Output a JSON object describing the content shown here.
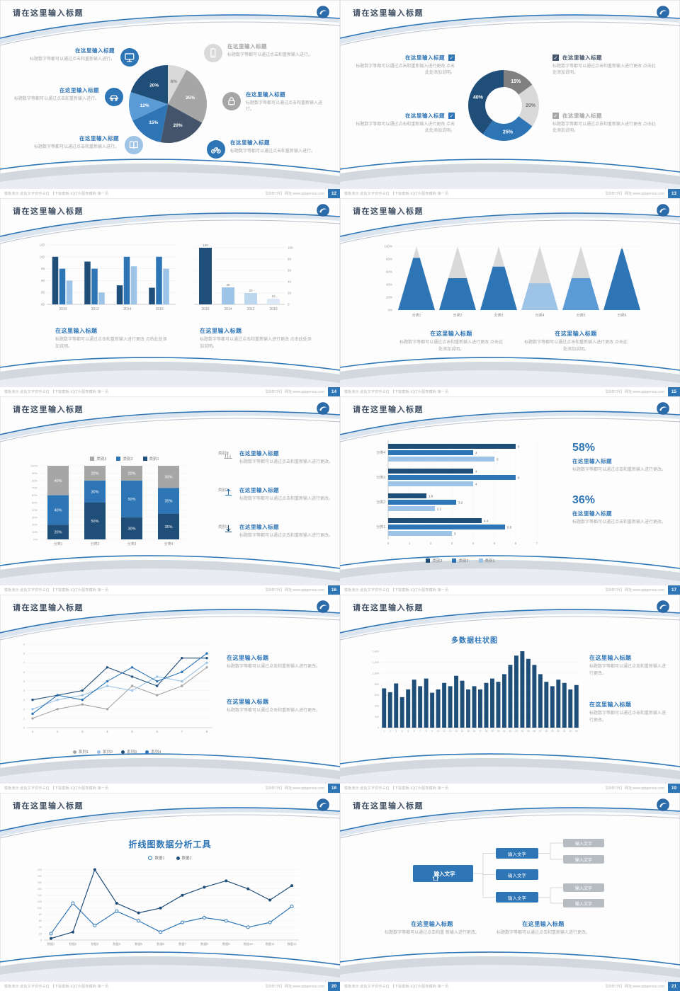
{
  "meta": {
    "slide_title": "请在这里输入标题",
    "footer_left": "模板演示:此处文字仅作占位 【下载模板·幻灯片图表模板·第一页",
    "footer_right": "【09年7月】 网址:www.pptgenius.com"
  },
  "palette": {
    "accent": "#2e75b6",
    "dark": "#1f4e79",
    "mid": "#5b9bd5",
    "light": "#9dc3e6",
    "pale": "#bdd7ee",
    "gray": "#a6a6a6",
    "lightgray": "#d9d9d9",
    "slate": "#44546a"
  },
  "slides": [
    {
      "page_no": "12",
      "type": "pie_callouts",
      "chart_data": {
        "type": "pie",
        "slices": [
          {
            "label": "8%",
            "value": 8,
            "color": "#d9d9d9",
            "text": "#888888"
          },
          {
            "label": "25%",
            "value": 25,
            "color": "#a6a6a6",
            "text": "#ffffff"
          },
          {
            "label": "20%",
            "value": 20,
            "color": "#44546a",
            "text": "#ffffff"
          },
          {
            "label": "15%",
            "value": 15,
            "color": "#2e75b6",
            "text": "#ffffff"
          },
          {
            "label": "12%",
            "value": 12,
            "color": "#5b9bd5",
            "text": "#ffffff"
          },
          {
            "label": "20%",
            "value": 20,
            "color": "#1f4e79",
            "text": "#ffffff"
          }
        ]
      },
      "left_items": [
        {
          "title": "在这里输入标题",
          "desc": "标题数字等都可以通过点击和重新输入进行。",
          "icon": "monitor",
          "icon_bg": "#2e75b6",
          "title_color": "#2e75b6"
        },
        {
          "title": "在这里输入标题",
          "desc": "标题数字等都可以通过点击和重新输入进行。",
          "icon": "car",
          "icon_bg": "#2e75b6",
          "title_color": "#2e75b6"
        },
        {
          "title": "在这里输入标题",
          "desc": "标题数字等都可以通过点击和重新输入进行。",
          "icon": "book",
          "icon_bg": "#9dc3e6",
          "title_color": "#2e75b6"
        }
      ],
      "right_items": [
        {
          "title": "在这里输入标题",
          "desc": "标题数字等都可以通过点击和重新输入进行。",
          "icon": "smartphone",
          "icon_bg": "#d9d9d9",
          "title_color": "#a6a6a6"
        },
        {
          "title": "在这里输入标题",
          "desc": "标题数字等都可以通过点击和重新输入进行。",
          "icon": "lock",
          "icon_bg": "#a6a6a6",
          "title_color": "#2e75b6"
        },
        {
          "title": "在这里输入标题",
          "desc": "标题数字等都可以通过点击和重新输入进行。",
          "icon": "bike",
          "icon_bg": "#2e75b6",
          "title_color": "#2e75b6"
        }
      ]
    },
    {
      "page_no": "13",
      "type": "donut_checks",
      "chart_data": {
        "type": "pie",
        "donut": true,
        "slices": [
          {
            "label": "15%",
            "value": 15,
            "color": "#808080",
            "text": "#ffffff"
          },
          {
            "label": "20%",
            "value": 20,
            "color": "#d9d9d9",
            "text": "#777777"
          },
          {
            "label": "25%",
            "value": 25,
            "color": "#2e75b6",
            "text": "#ffffff"
          },
          {
            "label": "40%",
            "value": 40,
            "color": "#1f4e79",
            "text": "#ffffff"
          }
        ]
      },
      "left_items": [
        {
          "title": "在这里输入标题",
          "desc": "标题数字等都可以通过点击和重新输入进行更改 点击此处添加说明。",
          "check_bg": "#2e75b6",
          "title_color": "#2e75b6"
        },
        {
          "title": "在这里输入标题",
          "desc": "标题数字等都可以通过点击和重新输入进行更改 点击此处添加说明。",
          "check_bg": "#2e75b6",
          "title_color": "#2e75b6"
        }
      ],
      "right_items": [
        {
          "title": "在这里输入标题",
          "desc": "标题数字等都可以通过点击和重新输入进行更改 点击此处添加说明。",
          "check_bg": "#44546a",
          "title_color": "#44546a"
        },
        {
          "title": "在这里输入标题",
          "desc": "标题数字等都可以通过点击和重新输入进行更改 点击此处添加说明。",
          "check_bg": "#a6a6a6",
          "title_color": "#a6a6a6"
        }
      ]
    },
    {
      "page_no": "14",
      "type": "dual_bars",
      "chart_data": [
        {
          "type": "bar",
          "categories": [
            "2010",
            "2012",
            "2014",
            "2016"
          ],
          "series": [
            {
              "name": "系列1",
              "color": "#1f4e79",
              "values": [
                100,
                98,
                88,
                87
              ]
            },
            {
              "name": "系列2",
              "color": "#2e75b6",
              "values": [
                95,
                95,
                100,
                100
              ]
            },
            {
              "name": "系列3",
              "color": "#9dc3e6",
              "values": [
                90,
                85,
                96,
                95
              ]
            }
          ],
          "ylim": [
            80,
            105
          ],
          "yticks": [
            80,
            85,
            90,
            95,
            100,
            105
          ]
        },
        {
          "type": "bar",
          "categories": [
            "2016",
            "2014",
            "2012",
            "2010"
          ],
          "values": [
            100,
            30,
            20,
            10
          ],
          "colors": [
            "#1f4e79",
            "#9dc3e6",
            "#bdd7ee",
            "#dce8f5"
          ],
          "ylim": [
            0,
            105
          ],
          "yticks": [
            0,
            20,
            40,
            60,
            80,
            100
          ]
        }
      ],
      "blocks": [
        {
          "title": "在这里输入标题",
          "desc": "标题数字等都可以通过点击和重新输入进行更改 点击此处添加说明。"
        },
        {
          "title": "在这里输入标题",
          "desc": "标题数字等都可以通过点击和重新输入进行更改 点击此处添加说明。"
        }
      ]
    },
    {
      "page_no": "15",
      "type": "pyramid",
      "chart_data": {
        "type": "pyramid",
        "categories": [
          "分类1",
          "分类2",
          "分类3",
          "分类4",
          "分类5",
          "分类6"
        ],
        "fill_pct": [
          82,
          50,
          68,
          42,
          50,
          96
        ],
        "fill_colors": [
          "#2e75b6",
          "#2e75b6",
          "#2e75b6",
          "#9dc3e6",
          "#5b9bd5",
          "#2e75b6"
        ],
        "yticks": [
          "0%",
          "20%",
          "40%",
          "60%",
          "80%",
          "100%"
        ]
      },
      "blocks": [
        {
          "title": "在这里输入标题",
          "desc": "标题数字等都可以通过点击和重新输入进行更改 点击此处添加说明。"
        },
        {
          "title": "在这里输入标题",
          "desc": "标题数字等都可以通过点击和重新输入进行更改 点击此处添加说明。"
        }
      ]
    },
    {
      "page_no": "16",
      "type": "stacked",
      "chart_data": {
        "type": "bar",
        "stacked": true,
        "categories": [
          "分类1",
          "分类2",
          "分类3",
          "分类4"
        ],
        "series": [
          {
            "name": "类别1",
            "color": "#1f4e79",
            "values": [
              20,
              50,
              30,
              35
            ]
          },
          {
            "name": "类别2",
            "color": "#2e75b6",
            "values": [
              40,
              30,
              50,
              35
            ]
          },
          {
            "name": "类别3",
            "color": "#a6a6a6",
            "values": [
              40,
              20,
              20,
              30
            ]
          }
        ],
        "legend": [
          "类别3",
          "类别2",
          "类别1"
        ],
        "ylim": [
          0,
          100
        ]
      },
      "items": [
        {
          "cat": "类别3",
          "icon": "bars",
          "icon_color": "#a6a6a6",
          "title": "在这里输入标题",
          "desc": "标题数字等都可以通过点击和重新输入进行更改。"
        },
        {
          "cat": "类别2",
          "icon": "arrow-up",
          "icon_color": "#2e75b6",
          "title": "在这里输入标题",
          "desc": "标题数字等都可以通过点击和重新输入进行更改。"
        },
        {
          "cat": "类别1",
          "icon": "arrow-down",
          "icon_color": "#1f4e79",
          "title": "在这里输入标题",
          "desc": "标题数字等都可以通过点击和重新输入进行更改。"
        }
      ]
    },
    {
      "page_no": "17",
      "type": "hbar",
      "chart_data": {
        "type": "bar",
        "horizontal": true,
        "categories": [
          "分类4",
          "分类3",
          "分类2",
          "分类1"
        ],
        "series": [
          {
            "name": "类别3",
            "color": "#1f4e79",
            "values": [
              6,
              4,
              1.8,
              4.4
            ]
          },
          {
            "name": "类别2",
            "color": "#2e75b6",
            "values": [
              4,
              6,
              3.2,
              5.5
            ]
          },
          {
            "name": "类别1",
            "color": "#9dc3e6",
            "values": [
              5,
              4,
              2.2,
              3
            ]
          }
        ],
        "xticks": [
          0,
          1,
          2,
          3,
          4,
          5,
          6,
          7
        ]
      },
      "stats": [
        {
          "pct": "58%",
          "title": "在这里输入标题",
          "desc": "标题数字等都可以通过点击和重新输入进行更改。"
        },
        {
          "pct": "36%",
          "title": "在这里输入标题",
          "desc": "标题数字等都可以通过点击和重新输入进行更改。"
        }
      ]
    },
    {
      "page_no": "18",
      "type": "lines",
      "chart_data": {
        "type": "line",
        "x": [
          1,
          2,
          3,
          4,
          5,
          6,
          7,
          8
        ],
        "series": [
          {
            "name": "系列1",
            "color": "#a6a6a6",
            "values": [
              1,
              2,
              2.5,
              2,
              4.5,
              3.5,
              4.5,
              6.5
            ]
          },
          {
            "name": "系列2",
            "color": "#9dc3e6",
            "values": [
              2,
              3,
              3.5,
              4.5,
              4,
              5.5,
              5,
              7
            ]
          },
          {
            "name": "系列3",
            "color": "#1f4e79",
            "values": [
              3,
              3.5,
              4,
              6.5,
              5.5,
              4.5,
              7.5,
              7.5
            ]
          },
          {
            "name": "系列4",
            "color": "#2e75b6",
            "values": [
              1.5,
              3.5,
              3,
              5,
              6.5,
              5,
              6,
              8
            ]
          }
        ],
        "ylim": [
          0,
          9
        ]
      },
      "blocks": [
        {
          "title": "在这里输入标题",
          "desc": "标题数字等都可以通过点击和重新输入进行更改。"
        },
        {
          "title": "在这里输入标题",
          "desc": "标题数字等都可以通过点击和重新输入进行更改。"
        }
      ]
    },
    {
      "page_no": "19",
      "type": "columns",
      "chart_data": {
        "type": "bar",
        "title": "多数据柱状图",
        "color": "#1f4e79",
        "categories": [
          1,
          2,
          3,
          4,
          5,
          6,
          7,
          8,
          9,
          10,
          11,
          12,
          13,
          14,
          15,
          16,
          17,
          18,
          19,
          20,
          21,
          22,
          23,
          24,
          25,
          26,
          27,
          28,
          29,
          30,
          31,
          32,
          33
        ],
        "values": [
          720,
          650,
          810,
          560,
          700,
          880,
          760,
          900,
          640,
          700,
          820,
          760,
          950,
          860,
          700,
          760,
          700,
          820,
          900,
          840,
          980,
          1150,
          1320,
          1400,
          1260,
          1150,
          980,
          840,
          760,
          880,
          820,
          700,
          780
        ],
        "ylim": [
          0,
          1400
        ],
        "yticks": [
          0,
          200,
          400,
          600,
          800,
          1000,
          1200,
          1400
        ]
      },
      "blocks": [
        {
          "title": "在这里输入标题",
          "desc": "标题数字等都可以通过点击和重新输入进行更改。"
        },
        {
          "title": "在这里输入标题",
          "desc": "标题数字等都可以通过点击和重新输入进行更改。"
        }
      ]
    },
    {
      "page_no": "20",
      "type": "bigline",
      "chart_data": {
        "type": "line",
        "title": "折线图数据分析工具",
        "x_labels": [
          "数据1",
          "数据2",
          "数据3",
          "数据4",
          "数据5",
          "数据6",
          "数据7",
          "数据8",
          "数据9",
          "数据10",
          "数据11",
          "数据12"
        ],
        "series": [
          {
            "name": "数据1",
            "color": "#2e75b6",
            "marker": "open",
            "values": [
              20,
              115,
              45,
              90,
              60,
              25,
              55,
              70,
              60,
              40,
              55,
              105
            ]
          },
          {
            "name": "数据2",
            "color": "#1f4e79",
            "marker": "filled",
            "values": [
              5,
              25,
              220,
              115,
              85,
              100,
              140,
              165,
              185,
              160,
              125,
              170
            ]
          }
        ],
        "ylim": [
          0,
          230
        ],
        "yticks": [
          0,
          20,
          40,
          60,
          80,
          100,
          120,
          140,
          160,
          180,
          200,
          220
        ]
      }
    },
    {
      "page_no": "21",
      "type": "diagram",
      "diagram": {
        "root": {
          "label": "输入文字",
          "icon": "home"
        },
        "mid": [
          {
            "label": "输入文字"
          },
          {
            "label": "输入文字"
          },
          {
            "label": "输入文字"
          }
        ],
        "leaves": [
          {
            "label": "输入文字"
          },
          {
            "label": "输入文字"
          },
          {
            "label": "输入文字"
          },
          {
            "label": "输入文字"
          }
        ]
      },
      "blocks": [
        {
          "title": "在这里输入标题",
          "desc": "标题数字等都可以通过点击和重 新输入进行更改。"
        },
        {
          "title": "在这里输入标题",
          "desc": "标题数字等都可以通过点击和重新输入进行更改。"
        }
      ]
    }
  ]
}
